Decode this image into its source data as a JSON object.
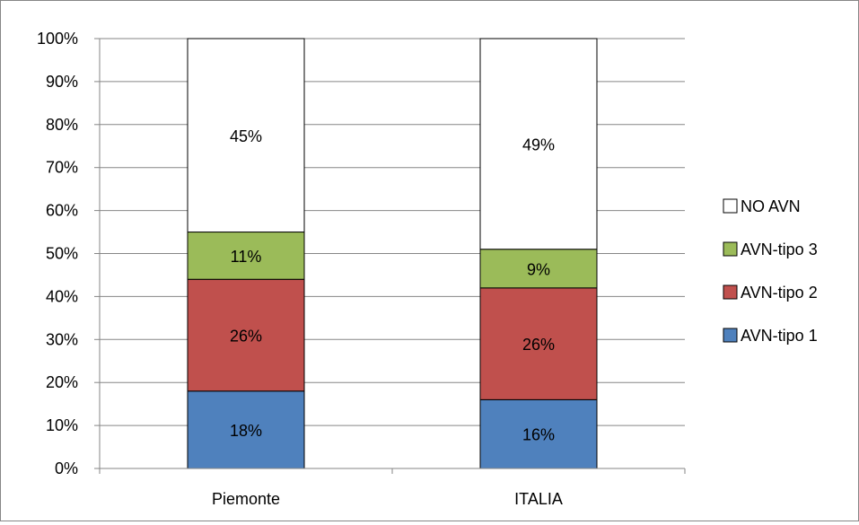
{
  "chart_data": {
    "type": "bar",
    "stacked": true,
    "percent_stacked": true,
    "categories": [
      "Piemonte",
      "ITALIA"
    ],
    "series": [
      {
        "name": "AVN-tipo 1",
        "values": [
          18,
          16
        ],
        "labels": [
          "18%",
          "16%"
        ],
        "color": "#4F81BD"
      },
      {
        "name": "AVN-tipo 2",
        "values": [
          26,
          26
        ],
        "labels": [
          "26%",
          "26%"
        ],
        "color": "#C0504D"
      },
      {
        "name": "AVN-tipo 3",
        "values": [
          11,
          9
        ],
        "labels": [
          "11%",
          "9%"
        ],
        "color": "#9BBB59"
      },
      {
        "name": "NO AVN",
        "values": [
          45,
          49
        ],
        "labels": [
          "45%",
          "49%"
        ],
        "color": "#FFFFFF"
      }
    ],
    "ylim": [
      0,
      100
    ],
    "yticks": [
      "0%",
      "10%",
      "20%",
      "30%",
      "40%",
      "50%",
      "60%",
      "70%",
      "80%",
      "90%",
      "100%"
    ],
    "grid": true,
    "legend_position": "right",
    "legend_order": [
      "NO AVN",
      "AVN-tipo 3",
      "AVN-tipo 2",
      "AVN-tipo 1"
    ],
    "title": "",
    "xlabel": "",
    "ylabel": ""
  }
}
